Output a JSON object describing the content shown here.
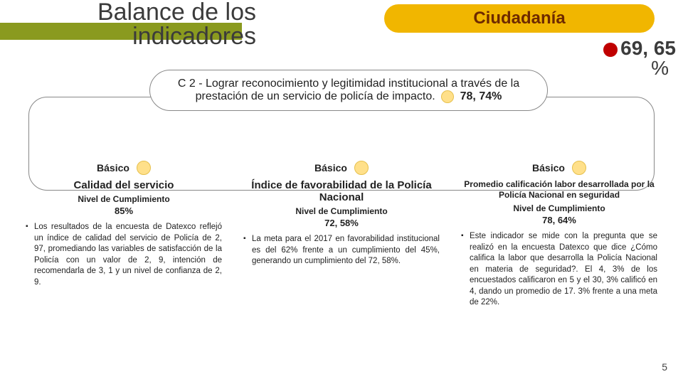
{
  "header": {
    "title": "Balance de los indicadores",
    "title_bar_color": "#8a9a1f",
    "right_pill": {
      "label": "Ciudadanía",
      "bg": "#f1b600",
      "text_color": "#6d2900"
    },
    "metric": {
      "value": "69, 65",
      "percent_label": "%",
      "dot_color": "#c00000"
    }
  },
  "objective": {
    "code": "C 2",
    "text_prefix": "- Lograr reconocimiento y legitimidad institucional a través de la prestación de un servicio de policía de impacto.",
    "value": "78, 74%",
    "dot_color": "#ffe08a"
  },
  "columns": [
    {
      "level_label": "Básico",
      "title": "Calidad del servicio",
      "compliance_label": "Nivel de Cumplimiento",
      "compliance_value": "85%",
      "bullet": "Los resultados de la encuesta de Datexco reflejó un índice de calidad del servicio de Policía de 2, 97, promediando las variables de satisfacción de la Policía con un valor de 2, 9, intención de recomendarla de 3, 1 y un nivel de confianza de 2, 9."
    },
    {
      "level_label": "Básico",
      "title": "Índice de favorabilidad de la Policía Nacional",
      "compliance_label": "Nivel de Cumplimiento",
      "compliance_value": "72, 58%",
      "bullet": "La meta para el 2017 en favorabilidad institucional es del 62% frente a un cumplimiento del 45%, generando un cumplimiento del 72, 58%."
    },
    {
      "level_label": "Básico",
      "title": "Promedio calificación labor desarrollada por la Policía Nacional en seguridad",
      "compliance_label": "Nivel de Cumplimiento",
      "compliance_value": "78, 64%",
      "bullet": "Este indicador se mide con la pregunta que se realizó en la encuesta Datexco que dice ¿Cómo califica la labor que desarrolla la Policía Nacional en materia de seguridad?. El 4, 3% de los encuestados calificaron en 5 y el 30, 3% calificó en 4, dando un promedio de 17. 3% frente a una meta de 22%."
    }
  ],
  "page_number": "5",
  "style": {
    "basico_dot_color": "#ffe08a",
    "basico_dot_border": "#e6c04d"
  }
}
